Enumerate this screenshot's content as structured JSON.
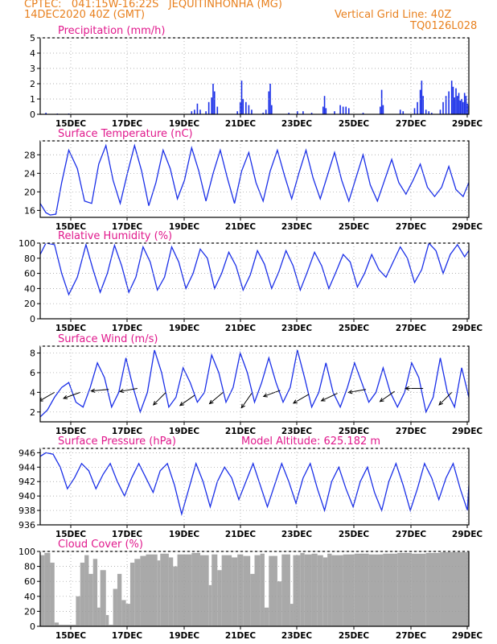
{
  "header": {
    "line1": "CPTEC:   041:15W-16:22S   JEQUITINHONHA (MG)",
    "line2": "14DEC2020 40Z (GMT)",
    "grid_note": "Vertical Grid Line: 40Z",
    "code": "TQ0126L028"
  },
  "colors": {
    "header": "#e8801e",
    "title": "#e0188c",
    "line": "#1a2fe8",
    "cloud": "#a9a9a9",
    "arrow": "#000000"
  },
  "chart_data": [
    {
      "type": "bar",
      "title": "Precipitation (mm/h)",
      "ylim": [
        0,
        5
      ],
      "yticks": [
        0,
        1,
        2,
        3,
        4,
        5
      ],
      "xticks": [
        "15DEC",
        "17DEC",
        "19DEC",
        "21DEC",
        "23DEC",
        "25DEC",
        "27DEC",
        "29DEC"
      ],
      "t_range": [
        0,
        15
      ],
      "bars": [
        [
          0.2,
          0.1
        ],
        [
          0.6,
          0.05
        ],
        [
          1.0,
          0.05
        ],
        [
          5.3,
          0.2
        ],
        [
          5.4,
          0.3
        ],
        [
          5.5,
          0.7
        ],
        [
          5.6,
          0.3
        ],
        [
          5.8,
          0.2
        ],
        [
          5.9,
          0.8
        ],
        [
          6.0,
          1.1
        ],
        [
          6.05,
          2.0
        ],
        [
          6.1,
          1.5
        ],
        [
          6.2,
          0.5
        ],
        [
          6.9,
          0.2
        ],
        [
          7.0,
          0.8
        ],
        [
          7.05,
          2.2
        ],
        [
          7.1,
          1.0
        ],
        [
          7.2,
          0.8
        ],
        [
          7.3,
          0.6
        ],
        [
          7.4,
          0.3
        ],
        [
          7.8,
          0.1
        ],
        [
          7.9,
          0.3
        ],
        [
          8.0,
          1.5
        ],
        [
          8.05,
          2.0
        ],
        [
          8.1,
          0.6
        ],
        [
          8.7,
          0.1
        ],
        [
          9.0,
          0.2
        ],
        [
          9.2,
          0.2
        ],
        [
          9.5,
          0.1
        ],
        [
          9.9,
          0.5
        ],
        [
          9.95,
          1.2
        ],
        [
          10.0,
          0.4
        ],
        [
          10.3,
          0.2
        ],
        [
          10.5,
          0.6
        ],
        [
          10.6,
          0.5
        ],
        [
          10.7,
          0.5
        ],
        [
          10.8,
          0.4
        ],
        [
          11.3,
          0.1
        ],
        [
          11.9,
          0.5
        ],
        [
          11.95,
          1.6
        ],
        [
          12.0,
          0.6
        ],
        [
          12.6,
          0.3
        ],
        [
          12.7,
          0.2
        ],
        [
          13.1,
          0.4
        ],
        [
          13.2,
          0.8
        ],
        [
          13.3,
          1.6
        ],
        [
          13.35,
          2.2
        ],
        [
          13.4,
          1.2
        ],
        [
          13.5,
          0.3
        ],
        [
          13.6,
          0.2
        ],
        [
          13.7,
          0.1
        ],
        [
          14.0,
          0.3
        ],
        [
          14.1,
          0.8
        ],
        [
          14.2,
          1.2
        ],
        [
          14.3,
          1.5
        ],
        [
          14.4,
          2.2
        ],
        [
          14.45,
          1.8
        ],
        [
          14.5,
          1.1
        ],
        [
          14.55,
          1.7
        ],
        [
          14.6,
          1.2
        ],
        [
          14.65,
          1.4
        ],
        [
          14.7,
          0.9
        ],
        [
          14.75,
          1.0
        ],
        [
          14.8,
          0.8
        ],
        [
          14.85,
          1.4
        ],
        [
          14.9,
          1.2
        ],
        [
          14.95,
          0.7
        ],
        [
          15.0,
          0.6
        ],
        [
          15.05,
          0.9
        ],
        [
          15.1,
          1.2
        ],
        [
          15.15,
          0.8
        ],
        [
          15.2,
          1.3
        ],
        [
          15.25,
          0.9
        ],
        [
          15.3,
          1.1
        ],
        [
          15.35,
          0.8
        ],
        [
          15.4,
          1.0
        ],
        [
          15.5,
          0.3
        ],
        [
          15.55,
          0.5
        ],
        [
          15.6,
          0.7
        ],
        [
          15.7,
          0.4
        ]
      ]
    },
    {
      "type": "line",
      "title": "Surface Temperature (nC)",
      "ylim": [
        14.5,
        31
      ],
      "yticks": [
        16,
        20,
        24,
        28
      ],
      "xticks": [
        "15DEC",
        "17DEC",
        "19DEC",
        "21DEC",
        "23DEC",
        "25DEC",
        "27DEC",
        "29DEC"
      ],
      "t_range": [
        0,
        15
      ],
      "x": [
        0.0,
        0.2,
        0.35,
        0.55,
        0.75,
        1.0,
        1.3,
        1.55,
        1.8,
        2.05,
        2.3,
        2.55,
        2.8,
        3.05,
        3.3,
        3.55,
        3.8,
        4.05,
        4.3,
        4.55,
        4.8,
        5.05,
        5.3,
        5.55,
        5.8,
        6.05,
        6.3,
        6.55,
        6.8,
        7.05,
        7.3,
        7.55,
        7.8,
        8.05,
        8.3,
        8.55,
        8.8,
        9.05,
        9.3,
        9.55,
        9.8,
        10.05,
        10.3,
        10.55,
        10.8,
        11.05,
        11.3,
        11.55,
        11.8,
        12.05,
        12.3,
        12.55,
        12.8,
        13.05,
        13.3,
        13.55,
        13.8,
        14.05,
        14.3,
        14.55,
        14.8,
        15.0
      ],
      "y": [
        17.5,
        15.5,
        15.0,
        15.2,
        22.0,
        29.0,
        25.0,
        18.0,
        17.5,
        26.0,
        30.0,
        22.5,
        17.5,
        24.0,
        30.0,
        24.5,
        17.0,
        22.0,
        29.0,
        25.0,
        18.5,
        22.5,
        29.5,
        24.5,
        18.0,
        24.0,
        29.0,
        23.0,
        17.5,
        24.5,
        28.5,
        22.0,
        18.0,
        24.5,
        29.0,
        23.5,
        18.5,
        24.0,
        29.0,
        23.0,
        18.5,
        23.5,
        28.5,
        22.5,
        18.0,
        23.0,
        28.0,
        21.5,
        18.0,
        22.5,
        27.0,
        22.0,
        19.5,
        22.5,
        26.0,
        21.0,
        19.0,
        21.0,
        25.5,
        20.5,
        19.0,
        22.0
      ]
    },
    {
      "type": "line",
      "title": "Relative Humidity (%)",
      "ylim": [
        0,
        100
      ],
      "yticks": [
        0,
        20,
        40,
        60,
        80,
        100
      ],
      "xticks": [
        "15DEC",
        "17DEC",
        "19DEC",
        "21DEC",
        "23DEC",
        "25DEC",
        "27DEC",
        "29DEC"
      ],
      "t_range": [
        0,
        15
      ],
      "x": [
        0.0,
        0.2,
        0.5,
        0.75,
        1.0,
        1.3,
        1.6,
        1.85,
        2.1,
        2.35,
        2.6,
        2.85,
        3.1,
        3.35,
        3.6,
        3.85,
        4.1,
        4.35,
        4.6,
        4.85,
        5.1,
        5.35,
        5.6,
        5.85,
        6.1,
        6.35,
        6.6,
        6.85,
        7.1,
        7.35,
        7.6,
        7.85,
        8.1,
        8.35,
        8.6,
        8.85,
        9.1,
        9.35,
        9.6,
        9.85,
        10.1,
        10.35,
        10.6,
        10.85,
        11.1,
        11.35,
        11.6,
        11.85,
        12.1,
        12.35,
        12.6,
        12.85,
        13.1,
        13.35,
        13.6,
        13.85,
        14.1,
        14.35,
        14.6,
        14.85,
        15.0
      ],
      "y": [
        85,
        100,
        98,
        60,
        32,
        55,
        98,
        65,
        35,
        60,
        97,
        70,
        35,
        55,
        95,
        75,
        38,
        55,
        95,
        75,
        40,
        60,
        92,
        80,
        40,
        60,
        88,
        70,
        38,
        58,
        90,
        72,
        40,
        62,
        90,
        70,
        38,
        62,
        88,
        70,
        40,
        62,
        85,
        75,
        42,
        60,
        85,
        65,
        55,
        75,
        95,
        80,
        48,
        65,
        100,
        90,
        60,
        85,
        98,
        82,
        90
      ]
    },
    {
      "type": "line",
      "title": "Surface Wind (m/s)",
      "ylim": [
        1,
        8.7
      ],
      "yticks": [
        2,
        4,
        6,
        8
      ],
      "xticks": [
        "15DEC",
        "17DEC",
        "19DEC",
        "21DEC",
        "23DEC",
        "25DEC",
        "27DEC",
        "29DEC"
      ],
      "t_range": [
        0,
        15
      ],
      "x": [
        0.0,
        0.25,
        0.5,
        0.75,
        1.0,
        1.25,
        1.5,
        1.75,
        2.0,
        2.25,
        2.5,
        2.75,
        3.0,
        3.25,
        3.5,
        3.75,
        4.0,
        4.25,
        4.5,
        4.75,
        5.0,
        5.25,
        5.5,
        5.75,
        6.0,
        6.25,
        6.5,
        6.75,
        7.0,
        7.25,
        7.5,
        7.75,
        8.0,
        8.25,
        8.5,
        8.75,
        9.0,
        9.25,
        9.5,
        9.75,
        10.0,
        10.25,
        10.5,
        10.75,
        11.0,
        11.25,
        11.5,
        11.75,
        12.0,
        12.25,
        12.5,
        12.75,
        13.0,
        13.25,
        13.5,
        13.75,
        14.0,
        14.25,
        14.5,
        14.75,
        15.0
      ],
      "y": [
        1.5,
        2.2,
        3.5,
        4.5,
        5.0,
        3.0,
        2.5,
        4.5,
        7.0,
        5.5,
        2.5,
        4.0,
        7.5,
        4.5,
        2.0,
        4.0,
        8.3,
        6.0,
        2.5,
        3.5,
        6.5,
        5.0,
        3.0,
        4.0,
        7.8,
        6.0,
        3.0,
        4.5,
        8.0,
        6.0,
        3.0,
        5.0,
        7.5,
        5.0,
        3.0,
        4.5,
        8.3,
        5.5,
        2.5,
        4.0,
        7.0,
        4.0,
        2.5,
        4.5,
        7.0,
        5.0,
        3.0,
        4.0,
        6.5,
        4.0,
        2.5,
        4.0,
        7.0,
        5.5,
        2.0,
        3.5,
        7.5,
        4.0,
        2.5,
        6.5,
        3.5
      ],
      "wind_arrows": [
        {
          "t": 0.5,
          "v": 4.0,
          "dir_deg": 210
        },
        {
          "t": 1.4,
          "v": 4.0,
          "dir_deg": 200
        },
        {
          "t": 2.4,
          "v": 4.3,
          "dir_deg": 185
        },
        {
          "t": 3.4,
          "v": 4.4,
          "dir_deg": 190
        },
        {
          "t": 4.4,
          "v": 4.0,
          "dir_deg": 225
        },
        {
          "t": 5.4,
          "v": 3.7,
          "dir_deg": 215
        },
        {
          "t": 6.4,
          "v": 4.0,
          "dir_deg": 220
        },
        {
          "t": 7.4,
          "v": 3.9,
          "dir_deg": 235
        },
        {
          "t": 8.4,
          "v": 4.2,
          "dir_deg": 200
        },
        {
          "t": 9.4,
          "v": 3.8,
          "dir_deg": 210
        },
        {
          "t": 10.4,
          "v": 3.9,
          "dir_deg": 205
        },
        {
          "t": 11.4,
          "v": 4.3,
          "dir_deg": 190
        },
        {
          "t": 12.4,
          "v": 4.1,
          "dir_deg": 215
        },
        {
          "t": 13.4,
          "v": 4.4,
          "dir_deg": 180
        },
        {
          "t": 14.4,
          "v": 4.0,
          "dir_deg": 225
        }
      ]
    },
    {
      "type": "line",
      "title": "Surface Pressure (hPa)",
      "subtitle": "Model Altitude: 625.182 m",
      "ylim": [
        936,
        946.6
      ],
      "yticks": [
        936,
        938,
        940,
        942,
        944,
        946
      ],
      "xticks": [
        "15DEC",
        "17DEC",
        "19DEC",
        "21DEC",
        "23DEC",
        "25DEC",
        "27DEC",
        "29DEC"
      ],
      "t_range": [
        0,
        15
      ],
      "x": [
        0.0,
        0.2,
        0.45,
        0.7,
        0.95,
        1.2,
        1.45,
        1.7,
        1.95,
        2.2,
        2.45,
        2.7,
        2.95,
        3.2,
        3.45,
        3.7,
        3.95,
        4.2,
        4.45,
        4.7,
        4.95,
        5.2,
        5.45,
        5.7,
        5.95,
        6.2,
        6.45,
        6.7,
        6.95,
        7.2,
        7.45,
        7.7,
        7.95,
        8.2,
        8.45,
        8.7,
        8.95,
        9.2,
        9.45,
        9.7,
        9.95,
        10.2,
        10.45,
        10.7,
        10.95,
        11.2,
        11.45,
        11.7,
        11.95,
        12.2,
        12.45,
        12.7,
        12.95,
        13.2,
        13.45,
        13.7,
        13.95,
        14.2,
        14.45,
        14.7,
        14.95,
        15.0
      ],
      "y": [
        945.5,
        946.0,
        945.8,
        944.0,
        941.0,
        942.5,
        944.5,
        943.5,
        941.0,
        943.0,
        944.5,
        942.0,
        940.0,
        942.5,
        944.5,
        942.5,
        940.5,
        943.5,
        944.5,
        941.5,
        937.5,
        941.0,
        944.5,
        942.0,
        938.5,
        942.0,
        944.0,
        942.5,
        939.5,
        942.0,
        944.5,
        941.5,
        938.5,
        941.5,
        944.5,
        942.0,
        939.0,
        942.5,
        944.5,
        941.0,
        938.0,
        942.0,
        944.0,
        941.0,
        938.5,
        942.0,
        944.0,
        940.5,
        938.0,
        942.0,
        944.5,
        941.5,
        938.0,
        941.0,
        944.5,
        942.5,
        939.5,
        942.5,
        944.5,
        941.0,
        938.0,
        941.5
      ]
    },
    {
      "type": "bar",
      "title": "Cloud Cover (%)",
      "ylim": [
        0,
        100
      ],
      "yticks": [
        0,
        20,
        40,
        60,
        80,
        100
      ],
      "xticks": [
        "15DEC",
        "17DEC",
        "19DEC",
        "21DEC",
        "23DEC",
        "25DEC",
        "27DEC",
        "29DEC"
      ],
      "t_range": [
        0,
        15
      ],
      "segments": [
        [
          0.0,
          0.15,
          95
        ],
        [
          0.15,
          0.35,
          98
        ],
        [
          0.35,
          0.5,
          85
        ],
        [
          0.5,
          0.65,
          5
        ],
        [
          0.65,
          1.25,
          2
        ],
        [
          1.25,
          1.4,
          40
        ],
        [
          1.4,
          1.55,
          85
        ],
        [
          1.55,
          1.7,
          95
        ],
        [
          1.7,
          1.85,
          70
        ],
        [
          1.85,
          2.0,
          90
        ],
        [
          2.0,
          2.1,
          25
        ],
        [
          2.1,
          2.3,
          75
        ],
        [
          2.3,
          2.4,
          15
        ],
        [
          2.4,
          2.55,
          2
        ],
        [
          2.55,
          2.7,
          50
        ],
        [
          2.7,
          2.85,
          70
        ],
        [
          2.85,
          3.0,
          35
        ],
        [
          3.0,
          3.15,
          30
        ],
        [
          3.15,
          3.3,
          85
        ],
        [
          3.3,
          3.5,
          90
        ],
        [
          3.5,
          3.7,
          94
        ],
        [
          3.7,
          4.1,
          96
        ],
        [
          4.1,
          4.2,
          88
        ],
        [
          4.2,
          4.5,
          97
        ],
        [
          4.5,
          4.65,
          92
        ],
        [
          4.65,
          4.8,
          80
        ],
        [
          4.8,
          5.3,
          96
        ],
        [
          5.3,
          5.6,
          98
        ],
        [
          5.6,
          5.9,
          95
        ],
        [
          5.9,
          6.0,
          55
        ],
        [
          6.0,
          6.2,
          96
        ],
        [
          6.2,
          6.35,
          75
        ],
        [
          6.35,
          6.7,
          95
        ],
        [
          6.7,
          6.9,
          92
        ],
        [
          6.9,
          7.1,
          96
        ],
        [
          7.1,
          7.35,
          94
        ],
        [
          7.35,
          7.5,
          70
        ],
        [
          7.5,
          7.7,
          95
        ],
        [
          7.7,
          7.85,
          97
        ],
        [
          7.85,
          8.0,
          25
        ],
        [
          8.0,
          8.3,
          94
        ],
        [
          8.3,
          8.45,
          60
        ],
        [
          8.45,
          8.75,
          96
        ],
        [
          8.75,
          8.85,
          30
        ],
        [
          8.85,
          9.1,
          95
        ],
        [
          9.1,
          9.25,
          98
        ],
        [
          9.25,
          9.5,
          96
        ],
        [
          9.5,
          9.7,
          97
        ],
        [
          9.7,
          9.9,
          95
        ],
        [
          9.9,
          10.05,
          92
        ],
        [
          10.05,
          10.2,
          97
        ],
        [
          10.2,
          10.6,
          95
        ],
        [
          10.6,
          11.0,
          96
        ],
        [
          11.0,
          11.5,
          97
        ],
        [
          11.5,
          12.0,
          96
        ],
        [
          12.0,
          12.5,
          97
        ],
        [
          12.5,
          13.0,
          98
        ],
        [
          13.0,
          13.5,
          97
        ],
        [
          13.5,
          14.0,
          98
        ],
        [
          14.0,
          15.0,
          99
        ]
      ]
    }
  ]
}
